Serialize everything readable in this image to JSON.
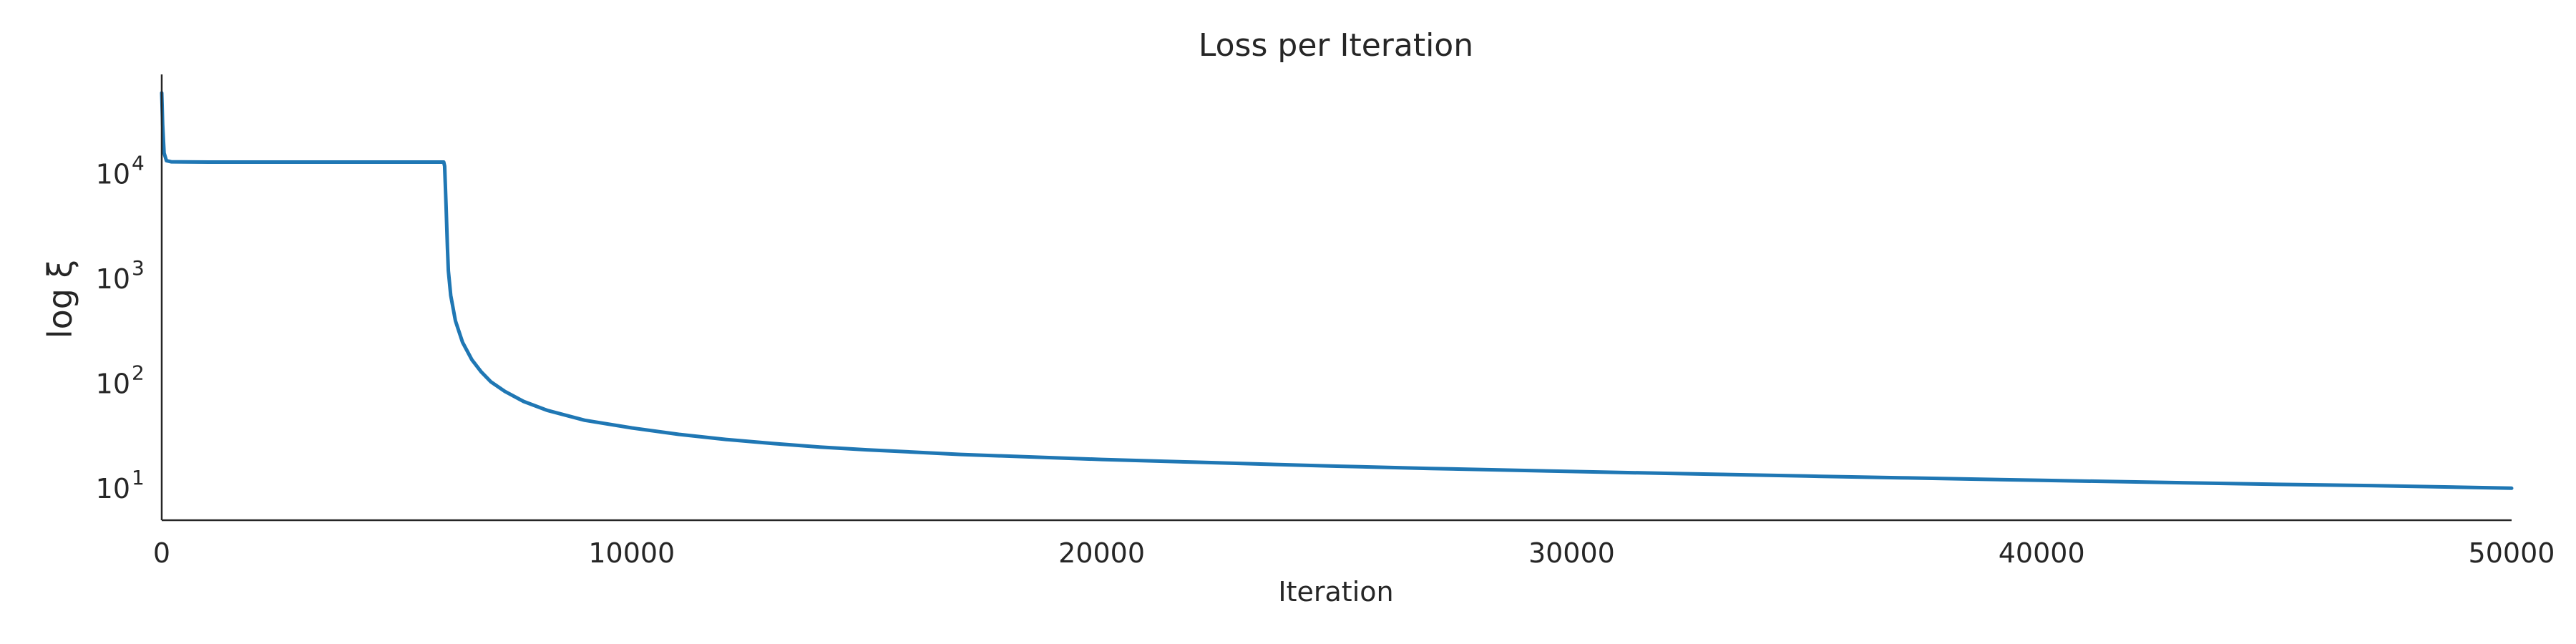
{
  "chart_data": {
    "type": "line",
    "title": "Loss per Iteration",
    "xlabel": "Iteration",
    "ylabel": "log ξ",
    "xlim": [
      0,
      50000
    ],
    "ylim": [
      5,
      90000
    ],
    "yscale": "log",
    "grid": false,
    "x_ticks": [
      0,
      10000,
      20000,
      30000,
      40000,
      50000
    ],
    "x_tick_labels": [
      "0",
      "10000",
      "20000",
      "30000",
      "40000",
      "50000"
    ],
    "y_ticks": [
      10,
      100,
      1000,
      10000
    ],
    "y_tick_labels": [
      {
        "base": "10",
        "exp": "1"
      },
      {
        "base": "10",
        "exp": "2"
      },
      {
        "base": "10",
        "exp": "3"
      },
      {
        "base": "10",
        "exp": "4"
      }
    ],
    "series": [
      {
        "color": "#1f77b4",
        "points": [
          [
            0,
            60000
          ],
          [
            20,
            30000
          ],
          [
            50,
            16000
          ],
          [
            100,
            13500
          ],
          [
            200,
            13200
          ],
          [
            1000,
            13100
          ],
          [
            3000,
            13100
          ],
          [
            5000,
            13100
          ],
          [
            6000,
            13100
          ],
          [
            6020,
            12000
          ],
          [
            6050,
            5000
          ],
          [
            6080,
            2000
          ],
          [
            6100,
            1200
          ],
          [
            6150,
            700
          ],
          [
            6250,
            400
          ],
          [
            6400,
            250
          ],
          [
            6600,
            170
          ],
          [
            6800,
            130
          ],
          [
            7000,
            105
          ],
          [
            7300,
            85
          ],
          [
            7700,
            68
          ],
          [
            8200,
            56
          ],
          [
            9000,
            45
          ],
          [
            10000,
            38
          ],
          [
            11000,
            33
          ],
          [
            12000,
            29.5
          ],
          [
            13000,
            27
          ],
          [
            14000,
            25
          ],
          [
            15000,
            23.5
          ],
          [
            17000,
            21.2
          ],
          [
            20000,
            19
          ],
          [
            22000,
            17.9
          ],
          [
            25000,
            16.4
          ],
          [
            27000,
            15.6
          ],
          [
            30000,
            14.6
          ],
          [
            32000,
            14
          ],
          [
            35000,
            13.2
          ],
          [
            37000,
            12.7
          ],
          [
            40000,
            12
          ],
          [
            42000,
            11.6
          ],
          [
            45000,
            11
          ],
          [
            47000,
            10.7
          ],
          [
            50000,
            10.1
          ]
        ]
      }
    ]
  }
}
